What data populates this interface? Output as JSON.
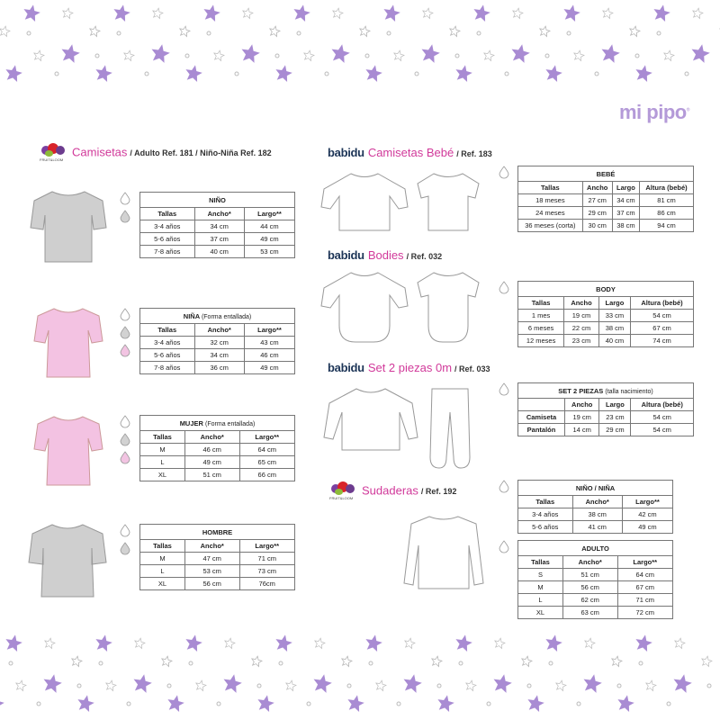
{
  "brand_logo": "mi pipo",
  "colors": {
    "accent": "#d1399a",
    "star": "#a98bd3",
    "gray_swatch": "#d2d2d2",
    "pink_swatch": "#f2c4e2",
    "white_swatch": "#ffffff"
  },
  "sections": {
    "camisetas": {
      "logo": "FRUIT of the LOOM",
      "title": "Camisetas",
      "ref": "/ Adulto Ref. 181 / Niño-Niña Ref. 182"
    },
    "bebe": {
      "logo": "babidu",
      "title": "Camisetas Bebé",
      "ref": "/ Ref. 183"
    },
    "bodies": {
      "logo": "babidu",
      "title": "Bodies",
      "ref": "/ Ref. 032"
    },
    "set": {
      "logo": "babidu",
      "title": "Set 2 piezas 0m",
      "ref": "/ Ref. 033"
    },
    "sudaderas": {
      "logo": "FRUIT of the LOOM",
      "title": "Sudaderas",
      "ref": "/ Ref. 192"
    }
  },
  "tables": {
    "nino": {
      "title": "NIÑO",
      "note": "",
      "swatches": [
        "white",
        "gray"
      ],
      "headers": [
        "Tallas",
        "Ancho*",
        "Largo**"
      ],
      "rows": [
        [
          "3-4 años",
          "34 cm",
          "44 cm"
        ],
        [
          "5-6 años",
          "37 cm",
          "49 cm"
        ],
        [
          "7-8 años",
          "40 cm",
          "53 cm"
        ]
      ]
    },
    "nina": {
      "title": "NIÑA",
      "note": "(Forma entallada)",
      "swatches": [
        "white",
        "gray",
        "pink"
      ],
      "headers": [
        "Tallas",
        "Ancho*",
        "Largo**"
      ],
      "rows": [
        [
          "3-4 años",
          "32 cm",
          "43 cm"
        ],
        [
          "5-6 años",
          "34 cm",
          "46 cm"
        ],
        [
          "7-8 años",
          "36 cm",
          "49 cm"
        ]
      ]
    },
    "mujer": {
      "title": "MUJER",
      "note": "(Forma entallada)",
      "swatches": [
        "white",
        "gray",
        "pink"
      ],
      "headers": [
        "Tallas",
        "Ancho*",
        "Largo**"
      ],
      "rows": [
        [
          "M",
          "46 cm",
          "64 cm"
        ],
        [
          "L",
          "49 cm",
          "65 cm"
        ],
        [
          "XL",
          "51 cm",
          "66 cm"
        ]
      ]
    },
    "hombre": {
      "title": "HOMBRE",
      "note": "",
      "swatches": [
        "white",
        "gray"
      ],
      "headers": [
        "Tallas",
        "Ancho*",
        "Largo**"
      ],
      "rows": [
        [
          "M",
          "47 cm",
          "71 cm"
        ],
        [
          "L",
          "53 cm",
          "73 cm"
        ],
        [
          "XL",
          "56 cm",
          "76cm"
        ]
      ]
    },
    "bebe": {
      "title": "BEBÉ",
      "note": "",
      "swatches": [
        "white"
      ],
      "headers": [
        "Tallas",
        "Ancho",
        "Largo",
        "Altura (bebé)"
      ],
      "rows": [
        [
          "18 meses",
          "27 cm",
          "34 cm",
          "81 cm"
        ],
        [
          "24 meses",
          "29 cm",
          "37 cm",
          "86 cm"
        ],
        [
          "36 meses (corta)",
          "30 cm",
          "38 cm",
          "94 cm"
        ]
      ]
    },
    "body": {
      "title": "BODY",
      "note": "",
      "swatches": [
        "white"
      ],
      "headers": [
        "Tallas",
        "Ancho",
        "Largo",
        "Altura (bebé)"
      ],
      "rows": [
        [
          "1 mes",
          "19 cm",
          "33 cm",
          "54 cm"
        ],
        [
          "6 meses",
          "22 cm",
          "38 cm",
          "67 cm"
        ],
        [
          "12 meses",
          "23 cm",
          "40 cm",
          "74 cm"
        ]
      ]
    },
    "set": {
      "title": "SET 2 PIEZAS",
      "note": "(talla nacimiento)",
      "swatches": [
        "white"
      ],
      "headers": [
        "",
        "Ancho",
        "Largo",
        "Altura (bebé)"
      ],
      "rows": [
        [
          "Camiseta",
          "19 cm",
          "23 cm",
          "54 cm"
        ],
        [
          "Pantalón",
          "14 cm",
          "29 cm",
          "54 cm"
        ]
      ]
    },
    "sud_nino": {
      "title": "NIÑO / NIÑA",
      "note": "",
      "swatches": [
        "white"
      ],
      "headers": [
        "Tallas",
        "Ancho*",
        "Largo**"
      ],
      "rows": [
        [
          "3-4 años",
          "38 cm",
          "42 cm"
        ],
        [
          "5-6 años",
          "41 cm",
          "49 cm"
        ]
      ]
    },
    "sud_adulto": {
      "title": "ADULTO",
      "note": "",
      "swatches": [
        "white"
      ],
      "headers": [
        "Tallas",
        "Ancho*",
        "Largo**"
      ],
      "rows": [
        [
          "S",
          "51 cm",
          "64 cm"
        ],
        [
          "M",
          "56 cm",
          "67 cm"
        ],
        [
          "L",
          "62 cm",
          "71 cm"
        ],
        [
          "XL",
          "63 cm",
          "72 cm"
        ]
      ]
    }
  }
}
